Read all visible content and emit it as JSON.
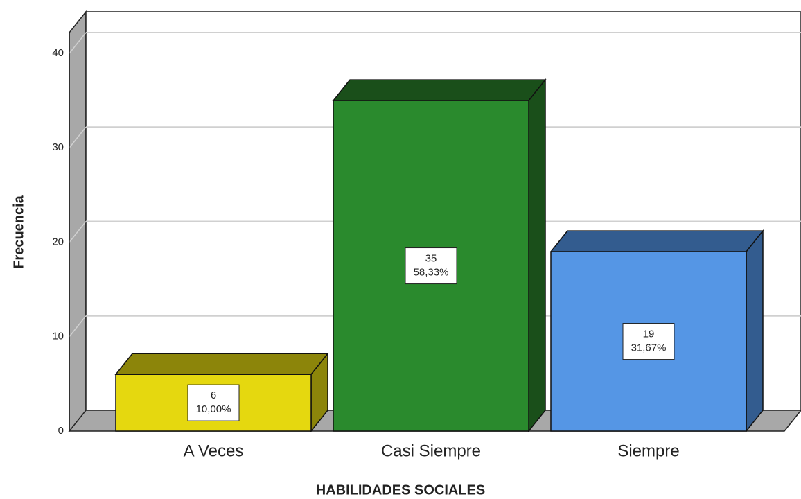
{
  "chart_data": {
    "type": "bar3d",
    "x_label": "HABILIDADES SOCIALES",
    "y_label": "Frecuencia",
    "categories": [
      "A Veces",
      "Casi Siempre",
      "Siempre"
    ],
    "values": [
      6,
      35,
      19
    ],
    "percentages": [
      10,
      58.33,
      31.67
    ],
    "percentage_labels": [
      "10,00%",
      "58,33%",
      "31,67%"
    ],
    "colors": [
      "#e5d80f",
      "#2a8a2d",
      "#5596e5"
    ],
    "side_colors": [
      "#8c850a",
      "#1a4f1a",
      "#335c8f"
    ],
    "ylim": [
      0,
      42.2
    ],
    "yticks": [
      0,
      10,
      20,
      30,
      40
    ],
    "grid": true
  }
}
